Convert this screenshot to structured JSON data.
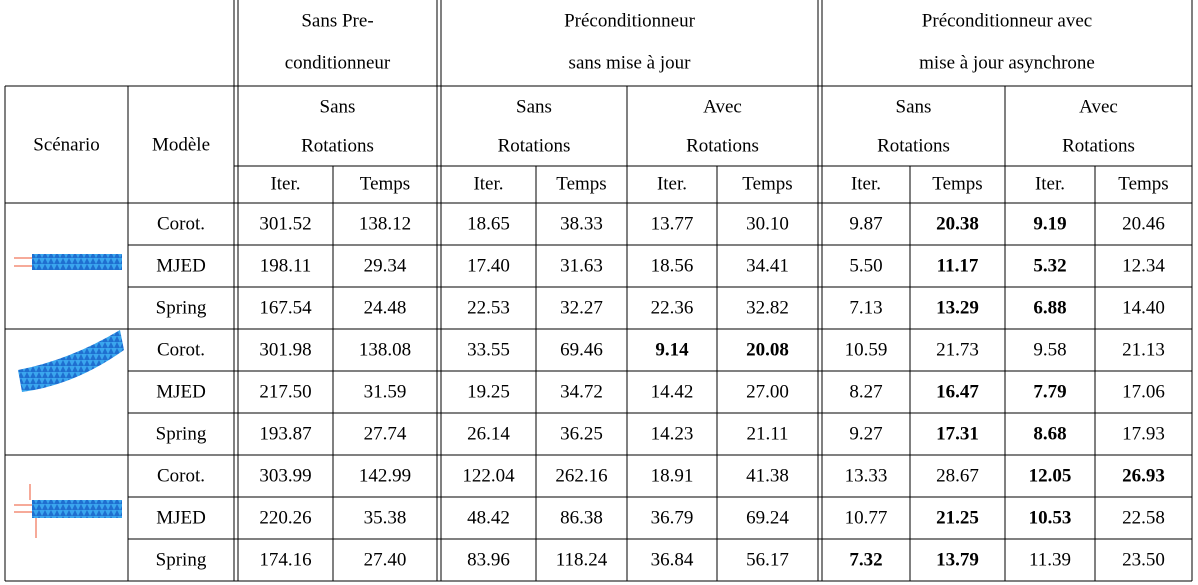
{
  "table": {
    "groups": [
      {
        "lines": [
          "Sans Pre-",
          "conditionneur"
        ]
      },
      {
        "lines": [
          "Préconditionneur",
          "sans mise à jour"
        ]
      },
      {
        "lines": [
          "Préconditionneur avec",
          "mise à jour asynchrone"
        ]
      }
    ],
    "scenario": "Scénario",
    "model": "Modèle",
    "subgroups": [
      {
        "lines": [
          "Sans",
          "Rotations"
        ]
      },
      {
        "lines": [
          "Sans",
          "Rotations"
        ]
      },
      {
        "lines": [
          "Avec",
          "Rotations"
        ]
      },
      {
        "lines": [
          "Sans",
          "Rotations"
        ]
      },
      {
        "lines": [
          "Avec",
          "Rotations"
        ]
      }
    ],
    "columns": [
      "Iter.",
      "Temps",
      "Iter.",
      "Temps",
      "Iter.",
      "Temps",
      "Iter.",
      "Temps",
      "Iter.",
      "Temps"
    ],
    "rows": [
      {
        "model": "Corot.",
        "values": [
          "301.52",
          "138.12",
          "18.65",
          "38.33",
          "13.77",
          "30.10",
          "9.87",
          "20.38",
          "9.19",
          "20.46"
        ],
        "bold": [
          false,
          false,
          false,
          false,
          false,
          false,
          false,
          true,
          true,
          false
        ]
      },
      {
        "model": "MJED",
        "values": [
          "198.11",
          "29.34",
          "17.40",
          "31.63",
          "18.56",
          "34.41",
          "5.50",
          "11.17",
          "5.32",
          "12.34"
        ],
        "bold": [
          false,
          false,
          false,
          false,
          false,
          false,
          false,
          true,
          true,
          false
        ]
      },
      {
        "model": "Spring",
        "values": [
          "167.54",
          "24.48",
          "22.53",
          "32.27",
          "22.36",
          "32.82",
          "7.13",
          "13.29",
          "6.88",
          "14.40"
        ],
        "bold": [
          false,
          false,
          false,
          false,
          false,
          false,
          false,
          true,
          true,
          false
        ]
      },
      {
        "model": "Corot.",
        "values": [
          "301.98",
          "138.08",
          "33.55",
          "69.46",
          "9.14",
          "20.08",
          "10.59",
          "21.73",
          "9.58",
          "21.13"
        ],
        "bold": [
          false,
          false,
          false,
          false,
          true,
          true,
          false,
          false,
          false,
          false
        ]
      },
      {
        "model": "MJED",
        "values": [
          "217.50",
          "31.59",
          "19.25",
          "34.72",
          "14.42",
          "27.00",
          "8.27",
          "16.47",
          "7.79",
          "17.06"
        ],
        "bold": [
          false,
          false,
          false,
          false,
          false,
          false,
          false,
          true,
          true,
          false
        ]
      },
      {
        "model": "Spring",
        "values": [
          "193.87",
          "27.74",
          "26.14",
          "36.25",
          "14.23",
          "21.11",
          "9.27",
          "17.31",
          "8.68",
          "17.93"
        ],
        "bold": [
          false,
          false,
          false,
          false,
          false,
          false,
          false,
          true,
          true,
          false
        ]
      },
      {
        "model": "Corot.",
        "values": [
          "303.99",
          "142.99",
          "122.04",
          "262.16",
          "18.91",
          "41.38",
          "13.33",
          "28.67",
          "12.05",
          "26.93"
        ],
        "bold": [
          false,
          false,
          false,
          false,
          false,
          false,
          false,
          false,
          true,
          true
        ]
      },
      {
        "model": "MJED",
        "values": [
          "220.26",
          "35.38",
          "48.42",
          "86.38",
          "36.79",
          "69.24",
          "10.77",
          "21.25",
          "10.53",
          "22.58"
        ],
        "bold": [
          false,
          false,
          false,
          false,
          false,
          false,
          false,
          true,
          true,
          false
        ]
      },
      {
        "model": "Spring",
        "values": [
          "174.16",
          "27.40",
          "83.96",
          "118.24",
          "36.84",
          "56.17",
          "7.32",
          "13.79",
          "11.39",
          "23.50"
        ],
        "bold": [
          false,
          false,
          false,
          false,
          false,
          false,
          true,
          true,
          false,
          false
        ]
      }
    ]
  }
}
